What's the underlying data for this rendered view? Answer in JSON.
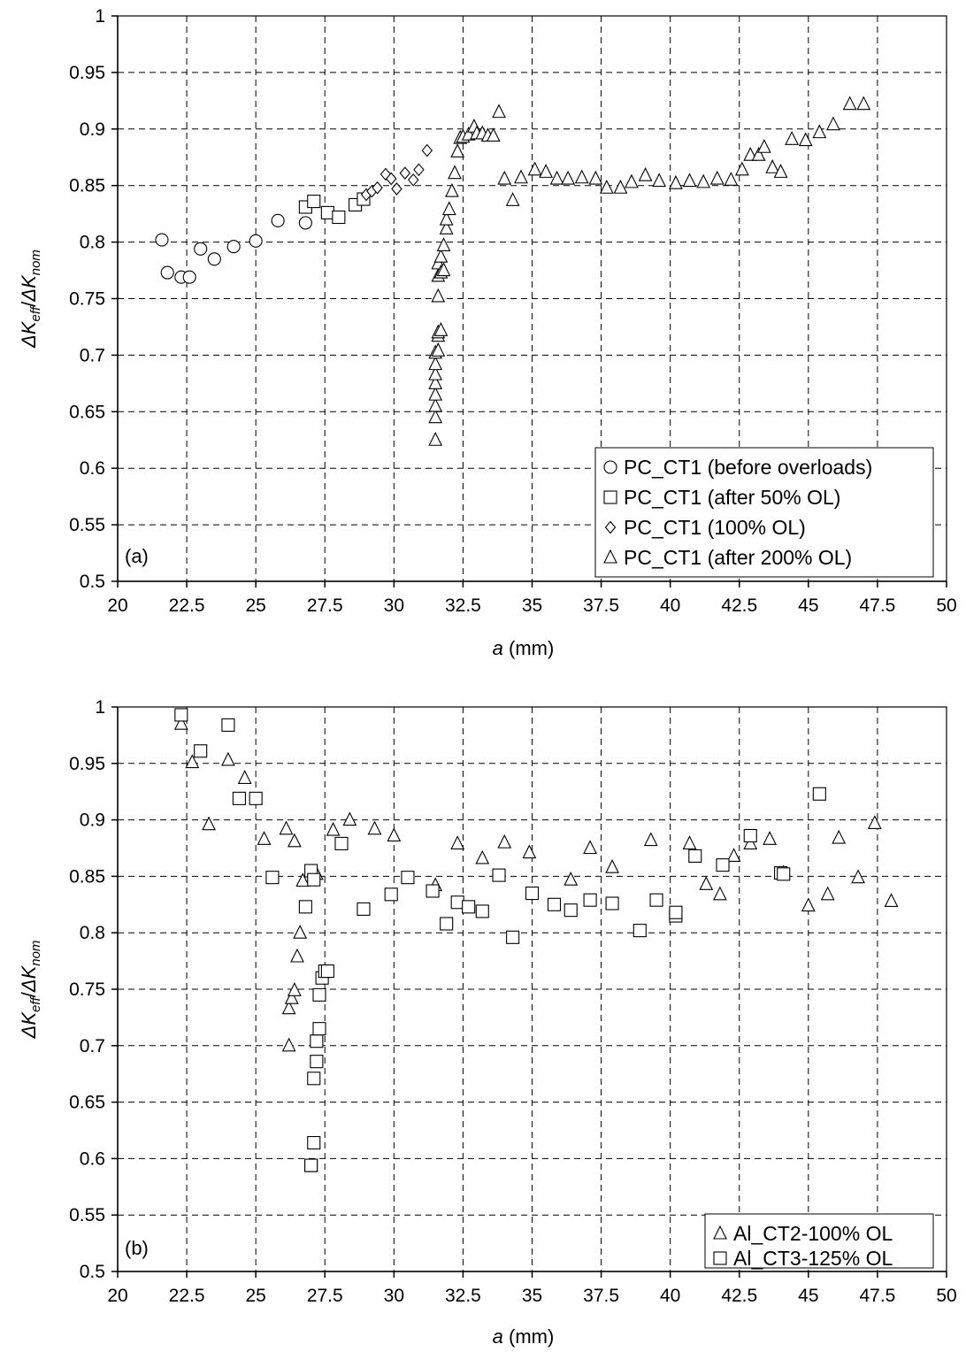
{
  "chart_data": [
    {
      "type": "scatter",
      "panel_label": "(a)",
      "xlabel": {
        "italic": "a",
        "rest": " (mm)"
      },
      "ylabel": {
        "parts": [
          [
            "ΔK",
            "italic"
          ],
          [
            "eff",
            "sub-italic"
          ],
          [
            "/",
            "normal"
          ],
          [
            "ΔK",
            "italic"
          ],
          [
            "nom",
            "sub-italic"
          ]
        ]
      },
      "xlim": [
        20,
        50
      ],
      "ylim": [
        0.5,
        1
      ],
      "xticks": [
        "20",
        "22.5",
        "25",
        "27.5",
        "30",
        "32.5",
        "35",
        "37.5",
        "40",
        "42.5",
        "45",
        "47.5",
        "50"
      ],
      "yticks": [
        "0.5",
        "0.55",
        "0.6",
        "0.65",
        "0.7",
        "0.75",
        "0.8",
        "0.85",
        "0.9",
        "0.95",
        "1"
      ],
      "grid": true,
      "legend_position": "bottom-right",
      "series": [
        {
          "name": "PC_CT1 (before overloads)",
          "marker": "circle",
          "x": [
            21.6,
            21.8,
            22.3,
            22.6,
            23.0,
            23.5,
            24.2,
            25.0,
            25.8,
            26.8
          ],
          "y": [
            0.802,
            0.773,
            0.769,
            0.769,
            0.794,
            0.785,
            0.796,
            0.801,
            0.819,
            0.817
          ]
        },
        {
          "name": "PC_CT1 (after 50% OL)",
          "marker": "square",
          "x": [
            26.8,
            27.1,
            27.6,
            28.0,
            28.6,
            28.9
          ],
          "y": [
            0.831,
            0.836,
            0.826,
            0.822,
            0.833,
            0.838
          ]
        },
        {
          "name": "PC_CT1 (100% OL)",
          "marker": "diamond",
          "x": [
            29.0,
            29.2,
            29.4,
            29.7,
            29.9,
            30.1,
            30.4,
            30.7,
            30.9,
            31.2
          ],
          "y": [
            0.842,
            0.845,
            0.848,
            0.86,
            0.856,
            0.847,
            0.861,
            0.855,
            0.864,
            0.881
          ]
        },
        {
          "name": "PC_CT1 (after 200% OL)",
          "marker": "triangle",
          "x": [
            31.5,
            31.5,
            31.5,
            31.5,
            31.5,
            31.5,
            31.5,
            31.5,
            31.6,
            31.6,
            31.6,
            31.6,
            31.6,
            31.6,
            31.7,
            31.7,
            31.7,
            31.8,
            31.8,
            31.9,
            31.9,
            32.0,
            32.1,
            32.2,
            32.3,
            32.4,
            32.5,
            32.7,
            32.9,
            33.0,
            33.2,
            33.4,
            33.6,
            33.8,
            34.0,
            34.3,
            34.6,
            35.1,
            35.5,
            35.9,
            36.3,
            36.8,
            37.3,
            37.7,
            38.2,
            38.6,
            39.1,
            39.6,
            40.2,
            40.7,
            41.2,
            41.7,
            42.2,
            42.6,
            42.9,
            43.2,
            43.4,
            43.7,
            44.0,
            44.4,
            44.9,
            45.4,
            45.9,
            46.5,
            47.0
          ],
          "y": [
            0.625,
            0.645,
            0.655,
            0.665,
            0.675,
            0.683,
            0.692,
            0.702,
            0.704,
            0.717,
            0.72,
            0.752,
            0.77,
            0.781,
            0.787,
            0.773,
            0.722,
            0.775,
            0.797,
            0.812,
            0.82,
            0.829,
            0.845,
            0.861,
            0.88,
            0.892,
            0.893,
            0.895,
            0.902,
            0.896,
            0.896,
            0.894,
            0.894,
            0.915,
            0.856,
            0.837,
            0.857,
            0.864,
            0.862,
            0.856,
            0.856,
            0.857,
            0.856,
            0.848,
            0.848,
            0.853,
            0.859,
            0.854,
            0.852,
            0.854,
            0.853,
            0.856,
            0.855,
            0.864,
            0.877,
            0.877,
            0.884,
            0.866,
            0.862,
            0.891,
            0.89,
            0.897,
            0.904,
            0.922,
            0.922
          ]
        }
      ]
    },
    {
      "type": "scatter",
      "panel_label": "(b)",
      "xlabel": {
        "italic": "a",
        "rest": " (mm)"
      },
      "ylabel": {
        "parts": [
          [
            "ΔK",
            "italic"
          ],
          [
            "eff",
            "sub-italic"
          ],
          [
            "/",
            "normal"
          ],
          [
            "ΔK",
            "italic"
          ],
          [
            "nom",
            "sub-italic"
          ]
        ]
      },
      "xlim": [
        20,
        50
      ],
      "ylim": [
        0.5,
        1
      ],
      "xticks": [
        "20",
        "22.5",
        "25",
        "27.5",
        "30",
        "32.5",
        "35",
        "37.5",
        "40",
        "42.5",
        "45",
        "47.5",
        "50"
      ],
      "yticks": [
        "0.5",
        "0.55",
        "0.6",
        "0.65",
        "0.7",
        "0.75",
        "0.8",
        "0.85",
        "0.9",
        "0.95",
        "1"
      ],
      "grid": true,
      "legend_position": "bottom-right",
      "series": [
        {
          "name": "Al_CT2-100% OL",
          "marker": "triangle",
          "x": [
            22.3,
            22.7,
            23.3,
            24.0,
            24.6,
            25.3,
            26.1,
            26.2,
            26.2,
            26.3,
            26.4,
            26.4,
            26.5,
            26.6,
            26.7,
            27.2,
            27.8,
            28.4,
            29.3,
            30.0,
            31.5,
            32.3,
            33.2,
            34.0,
            34.9,
            36.4,
            37.1,
            37.9,
            39.3,
            40.7,
            41.3,
            41.8,
            42.3,
            42.9,
            43.6,
            44.1,
            45.0,
            45.7,
            46.1,
            46.8,
            47.4,
            48.0
          ],
          "y": [
            0.985,
            0.951,
            0.896,
            0.953,
            0.937,
            0.883,
            0.892,
            0.7,
            0.733,
            0.742,
            0.749,
            0.881,
            0.779,
            0.8,
            0.846,
            0.852,
            0.891,
            0.9,
            0.892,
            0.886,
            0.842,
            0.879,
            0.866,
            0.88,
            0.871,
            0.847,
            0.875,
            0.858,
            0.882,
            0.879,
            0.843,
            0.834,
            0.868,
            0.879,
            0.883,
            0.853,
            0.824,
            0.834,
            0.884,
            0.849,
            0.897,
            0.828
          ]
        },
        {
          "name": "Al_CT3-125% OL",
          "marker": "square",
          "x": [
            22.3,
            23.0,
            24.0,
            24.4,
            25.0,
            25.6,
            26.8,
            27.0,
            27.1,
            27.1,
            27.2,
            27.2,
            27.3,
            27.3,
            27.4,
            27.5,
            27.6,
            27.1,
            27.0,
            27.0,
            28.1,
            28.9,
            29.9,
            30.5,
            31.4,
            31.9,
            32.3,
            32.7,
            33.2,
            33.8,
            34.3,
            35.0,
            35.8,
            36.4,
            37.1,
            37.9,
            38.9,
            39.5,
            40.2,
            40.2,
            40.9,
            41.9,
            42.9,
            44.0,
            44.1,
            45.4
          ],
          "y": [
            0.993,
            0.961,
            0.984,
            0.919,
            0.919,
            0.849,
            0.823,
            0.855,
            0.847,
            0.671,
            0.704,
            0.686,
            0.715,
            0.745,
            0.76,
            0.766,
            0.766,
            0.614,
            0.594,
            0.594,
            0.879,
            0.821,
            0.834,
            0.849,
            0.837,
            0.808,
            0.827,
            0.823,
            0.819,
            0.851,
            0.796,
            0.835,
            0.825,
            0.82,
            0.829,
            0.826,
            0.802,
            0.829,
            0.815,
            0.818,
            0.868,
            0.86,
            0.886,
            0.853,
            0.852,
            0.923
          ]
        }
      ]
    }
  ]
}
